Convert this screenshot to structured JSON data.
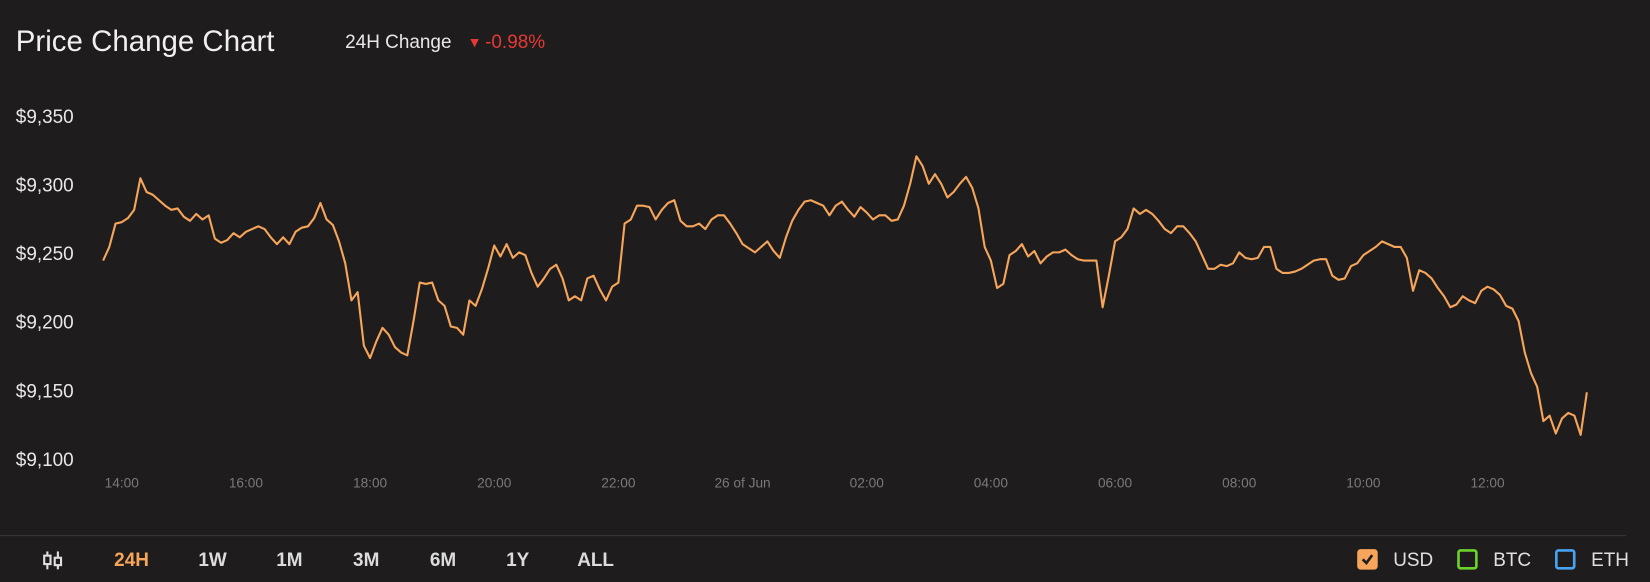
{
  "header": {
    "change_label": "24H Change",
    "change_value": "-0.98%",
    "change_color": "#e53935"
  },
  "chart_data": {
    "type": "line",
    "title": "Price Change Chart",
    "categories": [
      null,
      null,
      null,
      "14:00",
      null,
      null,
      null,
      null,
      null,
      null,
      null,
      null,
      null,
      null,
      null,
      null,
      null,
      null,
      null,
      null,
      null,
      null,
      null,
      "16:00",
      null,
      null,
      null,
      null,
      null,
      null,
      null,
      null,
      null,
      null,
      null,
      null,
      null,
      null,
      null,
      null,
      null,
      null,
      null,
      "18:00",
      null,
      null,
      null,
      null,
      null,
      null,
      null,
      null,
      null,
      null,
      null,
      null,
      null,
      null,
      null,
      null,
      null,
      null,
      null,
      "20:00",
      null,
      null,
      null,
      null,
      null,
      null,
      null,
      null,
      null,
      null,
      null,
      null,
      null,
      null,
      null,
      null,
      null,
      null,
      null,
      "22:00",
      null,
      null,
      null,
      null,
      null,
      null,
      null,
      null,
      null,
      null,
      null,
      null,
      null,
      null,
      null,
      null,
      null,
      null,
      null,
      "26 of Jun",
      null,
      null,
      null,
      null,
      null,
      null,
      null,
      null,
      null,
      null,
      null,
      null,
      null,
      null,
      null,
      null,
      null,
      null,
      null,
      "02:00",
      null,
      null,
      null,
      null,
      null,
      null,
      null,
      null,
      null,
      null,
      null,
      null,
      null,
      null,
      null,
      null,
      null,
      null,
      null,
      "04:00",
      null,
      null,
      null,
      null,
      null,
      null,
      null,
      null,
      null,
      null,
      null,
      null,
      null,
      null,
      null,
      null,
      null,
      null,
      null,
      "06:00",
      null,
      null,
      null,
      null,
      null,
      null,
      null,
      null,
      null,
      null,
      null,
      null,
      null,
      null,
      null,
      null,
      null,
      null,
      null,
      "08:00",
      null,
      null,
      null,
      null,
      null,
      null,
      null,
      null,
      null,
      null,
      null,
      null,
      null,
      null,
      null,
      null,
      null,
      null,
      null,
      "10:00",
      null,
      null,
      null,
      null,
      null,
      null,
      null,
      null,
      null,
      null,
      null,
      null,
      null,
      null,
      null,
      null,
      null,
      null,
      null,
      "12:00",
      null,
      null,
      null,
      null,
      null,
      null,
      null,
      null,
      null,
      null,
      null,
      null,
      null,
      null,
      null,
      null
    ],
    "series": [
      {
        "name": "USD",
        "color": "#f6a55a",
        "shown": true,
        "values": [
          9246,
          9256,
          9273,
          9274,
          9277,
          9283,
          9306,
          9296,
          9294,
          9290,
          9286,
          9283,
          9284,
          9278,
          9275,
          9280,
          9276,
          9279,
          9262,
          9259,
          9261,
          9266,
          9263,
          9267,
          9269,
          9271,
          9269,
          9263,
          9258,
          9263,
          9258,
          9267,
          9270,
          9271,
          9277,
          9288,
          9276,
          9272,
          9260,
          9244,
          9217,
          9223,
          9184,
          9175,
          9187,
          9197,
          9192,
          9183,
          9179,
          9177,
          9202,
          9230,
          9229,
          9230,
          9217,
          9213,
          9198,
          9197,
          9192,
          9217,
          9213,
          9225,
          9240,
          9257,
          9249,
          9258,
          9248,
          9252,
          9250,
          9237,
          9227,
          9233,
          9240,
          9243,
          9233,
          9217,
          9220,
          9217,
          9233,
          9235,
          9225,
          9217,
          9227,
          9230,
          9273,
          9276,
          9286,
          9286,
          9285,
          9276,
          9283,
          9288,
          9290,
          9275,
          9271,
          9271,
          9273,
          9269,
          9276,
          9279,
          9279,
          9273,
          9266,
          9258,
          9255,
          9252,
          9256,
          9260,
          9253,
          9248,
          9263,
          9275,
          9283,
          9289,
          9290,
          9288,
          9286,
          9279,
          9286,
          9289,
          9283,
          9278,
          9285,
          9281,
          9276,
          9279,
          9279,
          9275,
          9276,
          9286,
          9302,
          9322,
          9315,
          9302,
          9309,
          9302,
          9292,
          9296,
          9302,
          9307,
          9299,
          9284,
          9256,
          9246,
          9226,
          9229,
          9250,
          9253,
          9258,
          9249,
          9253,
          9244,
          9249,
          9252,
          9252,
          9254,
          9250,
          9247,
          9246,
          9246,
          9246,
          9212,
          9235,
          9260,
          9263,
          9269,
          9284,
          9280,
          9283,
          9280,
          9275,
          9269,
          9266,
          9271,
          9271,
          9266,
          9260,
          9250,
          9240,
          9240,
          9243,
          9242,
          9244,
          9252,
          9248,
          9247,
          9248,
          9256,
          9256,
          9240,
          9237,
          9237,
          9238,
          9240,
          9243,
          9246,
          9247,
          9247,
          9235,
          9232,
          9233,
          9242,
          9244,
          9250,
          9253,
          9256,
          9260,
          9258,
          9256,
          9256,
          9248,
          9224,
          9239,
          9237,
          9233,
          9226,
          9220,
          9212,
          9214,
          9220,
          9217,
          9215,
          9224,
          9227,
          9225,
          9221,
          9213,
          9211,
          9202,
          9179,
          9164,
          9154,
          9129,
          9133,
          9120,
          9131,
          9135,
          9133,
          9119,
          9150
        ]
      }
    ],
    "ylim": [
      9100,
      9350
    ],
    "yticks": [
      {
        "value": 9100,
        "label": "$9,100"
      },
      {
        "value": 9150,
        "label": "$9,150"
      },
      {
        "value": 9200,
        "label": "$9,200"
      },
      {
        "value": 9250,
        "label": "$9,250"
      },
      {
        "value": 9300,
        "label": "$9,300"
      },
      {
        "value": 9350,
        "label": "$9,350"
      }
    ],
    "grid": false
  },
  "range_buttons": [
    {
      "label": "24H",
      "active": true
    },
    {
      "label": "1W",
      "active": false
    },
    {
      "label": "1M",
      "active": false
    },
    {
      "label": "3M",
      "active": false
    },
    {
      "label": "6M",
      "active": false
    },
    {
      "label": "1Y",
      "active": false
    },
    {
      "label": "ALL",
      "active": false
    }
  ],
  "other_currencies": [
    {
      "label": "BTC",
      "color": "#6bd32a",
      "checked": false
    },
    {
      "label": "ETH",
      "color": "#4aa3f0",
      "checked": false
    }
  ]
}
